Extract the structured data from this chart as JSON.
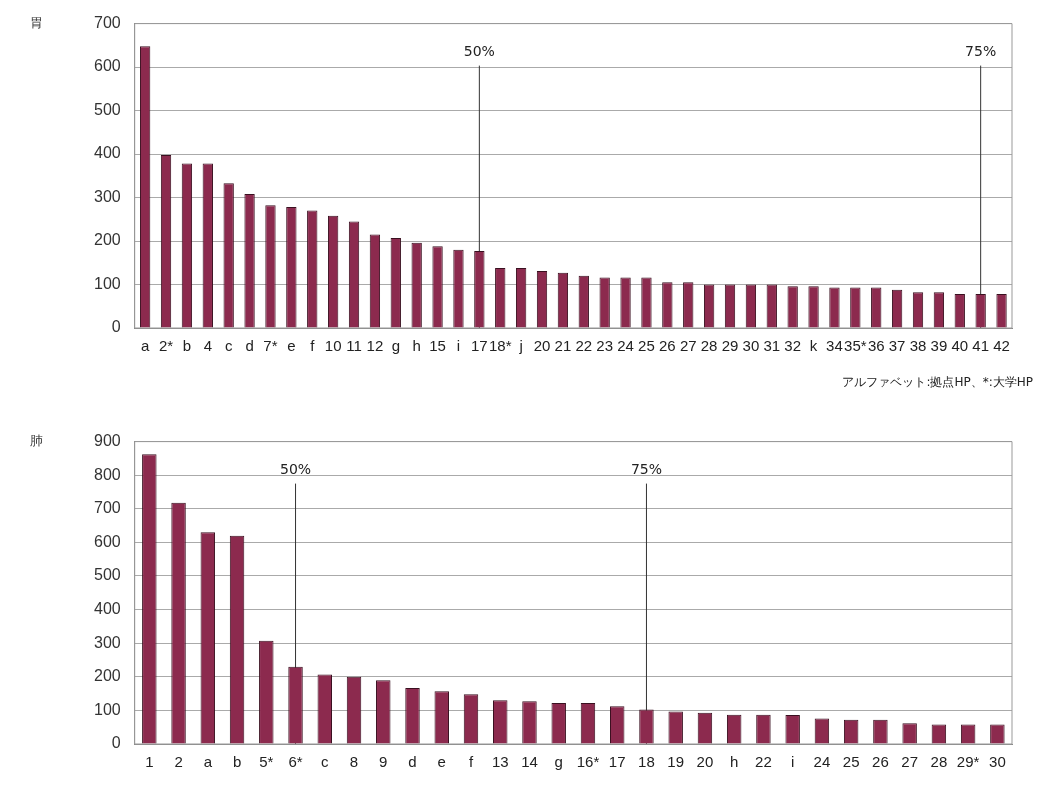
{
  "chart_data": [
    {
      "type": "bar",
      "title": "胃",
      "categories": [
        "a",
        "2*",
        "b",
        "4",
        "c",
        "d",
        "7*",
        "e",
        "f",
        "10",
        "11",
        "12",
        "g",
        "h",
        "15",
        "i",
        "17",
        "18*",
        "j",
        "20",
        "21",
        "22",
        "23",
        "24",
        "25",
        "26",
        "27",
        "28",
        "29",
        "30",
        "31",
        "32",
        "k",
        "34",
        "35*",
        "36",
        "37",
        "38",
        "39",
        "40",
        "41",
        "42"
      ],
      "values": [
        648,
        398,
        378,
        378,
        333,
        308,
        282,
        278,
        270,
        258,
        245,
        215,
        207,
        196,
        188,
        180,
        177,
        138,
        138,
        131,
        127,
        120,
        116,
        116,
        116,
        105,
        105,
        100,
        100,
        100,
        100,
        96,
        96,
        93,
        93,
        93,
        88,
        82,
        82,
        78,
        78,
        78
      ],
      "color": "#8c2a4e",
      "ylim": [
        0,
        700
      ],
      "yticks": [
        0,
        100,
        200,
        300,
        400,
        500,
        600,
        700
      ],
      "grid": "y",
      "ref_lines": [
        {
          "axis": "x",
          "value": "17",
          "label": "50%"
        },
        {
          "axis": "x",
          "value": "41",
          "label": "75%"
        }
      ],
      "annotations": [
        "アルファベット:拠点HP、*:大学HP"
      ]
    },
    {
      "type": "bar",
      "title": "肺",
      "categories": [
        "1",
        "2",
        "a",
        "b",
        "5*",
        "6*",
        "c",
        "8",
        "9",
        "d",
        "e",
        "f",
        "13",
        "14",
        "g",
        "16*",
        "17",
        "18",
        "19",
        "20",
        "h",
        "22",
        "i",
        "24",
        "25",
        "26",
        "27",
        "28",
        "29*",
        "30"
      ],
      "values": [
        862,
        718,
        630,
        620,
        307,
        230,
        207,
        200,
        190,
        167,
        157,
        148,
        130,
        127,
        122,
        122,
        112,
        103,
        97,
        93,
        87,
        87,
        86,
        76,
        72,
        72,
        62,
        58,
        58,
        58
      ],
      "color": "#8c2a4e",
      "ylim": [
        0,
        900
      ],
      "yticks": [
        0,
        100,
        200,
        300,
        400,
        500,
        600,
        700,
        800,
        900
      ],
      "grid": "y",
      "ref_lines": [
        {
          "axis": "x",
          "value": "6*",
          "label": "50%"
        },
        {
          "axis": "x",
          "value": "18",
          "label": "75%"
        }
      ]
    }
  ]
}
